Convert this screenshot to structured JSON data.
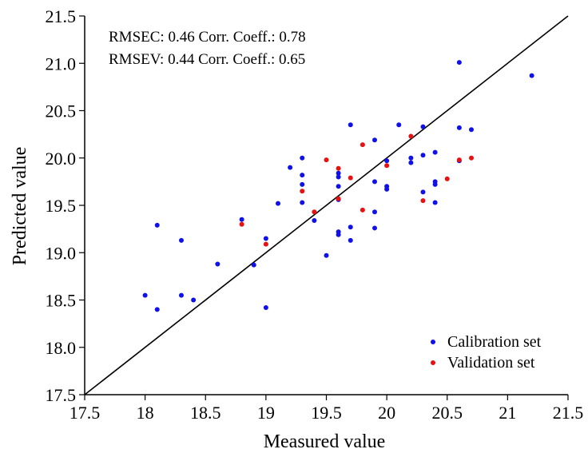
{
  "chart_data": {
    "type": "scatter",
    "xlabel": "Measured value",
    "ylabel": "Predicted value",
    "xlim": [
      17.5,
      21.5
    ],
    "ylim": [
      17.5,
      21.5
    ],
    "x_ticks": [
      "17.5",
      "18",
      "18.5",
      "19",
      "19.5",
      "20",
      "20.5",
      "21",
      "21.5"
    ],
    "y_ticks": [
      "17.5",
      "18.0",
      "18.5",
      "19.0",
      "19.5",
      "20.0",
      "20.5",
      "21.0",
      "21.5"
    ],
    "grid": false,
    "legend_position": "bottom-right",
    "annotations": [
      "RMSEC: 0.46 Corr. Coeff.: 0.78",
      "RMSEV: 0.44 Corr. Coeff.: 0.65"
    ],
    "reference_line": {
      "from": [
        17.5,
        17.5
      ],
      "to": [
        21.5,
        21.5
      ]
    },
    "series": [
      {
        "name": "Calibration set",
        "color": "#1010e8",
        "points": [
          [
            18.0,
            18.55
          ],
          [
            18.1,
            18.4
          ],
          [
            18.1,
            19.29
          ],
          [
            18.3,
            19.13
          ],
          [
            18.3,
            18.55
          ],
          [
            18.4,
            18.5
          ],
          [
            18.6,
            18.88
          ],
          [
            18.8,
            19.35
          ],
          [
            18.9,
            18.87
          ],
          [
            19.0,
            19.15
          ],
          [
            19.0,
            18.42
          ],
          [
            19.1,
            19.52
          ],
          [
            19.2,
            19.9
          ],
          [
            19.3,
            20.0
          ],
          [
            19.3,
            19.82
          ],
          [
            19.3,
            19.72
          ],
          [
            19.3,
            19.53
          ],
          [
            19.4,
            19.34
          ],
          [
            19.5,
            18.97
          ],
          [
            19.6,
            19.84
          ],
          [
            19.6,
            19.8
          ],
          [
            19.6,
            19.7
          ],
          [
            19.6,
            19.56
          ],
          [
            19.6,
            19.22
          ],
          [
            19.6,
            19.19
          ],
          [
            19.7,
            20.35
          ],
          [
            19.7,
            19.27
          ],
          [
            19.7,
            19.13
          ],
          [
            19.9,
            20.19
          ],
          [
            19.9,
            19.75
          ],
          [
            19.9,
            19.43
          ],
          [
            19.9,
            19.26
          ],
          [
            20.0,
            19.97
          ],
          [
            20.0,
            19.7
          ],
          [
            20.0,
            19.67
          ],
          [
            20.1,
            20.35
          ],
          [
            20.2,
            20.0
          ],
          [
            20.2,
            19.95
          ],
          [
            20.3,
            20.33
          ],
          [
            20.3,
            20.03
          ],
          [
            20.3,
            19.64
          ],
          [
            20.4,
            20.06
          ],
          [
            20.4,
            19.75
          ],
          [
            20.4,
            19.72
          ],
          [
            20.4,
            19.53
          ],
          [
            20.6,
            21.01
          ],
          [
            20.6,
            20.32
          ],
          [
            20.6,
            19.97
          ],
          [
            20.7,
            20.3
          ],
          [
            21.2,
            20.87
          ]
        ]
      },
      {
        "name": "Validation set",
        "color": "#e81010",
        "points": [
          [
            18.8,
            19.3
          ],
          [
            19.0,
            19.09
          ],
          [
            19.3,
            19.65
          ],
          [
            19.4,
            19.43
          ],
          [
            19.5,
            19.98
          ],
          [
            19.6,
            19.89
          ],
          [
            19.6,
            19.57
          ],
          [
            19.7,
            19.79
          ],
          [
            19.8,
            20.14
          ],
          [
            19.8,
            19.45
          ],
          [
            20.0,
            19.92
          ],
          [
            20.2,
            20.23
          ],
          [
            20.3,
            19.55
          ],
          [
            20.5,
            19.78
          ],
          [
            20.6,
            19.98
          ],
          [
            20.7,
            20.0
          ]
        ]
      }
    ]
  }
}
